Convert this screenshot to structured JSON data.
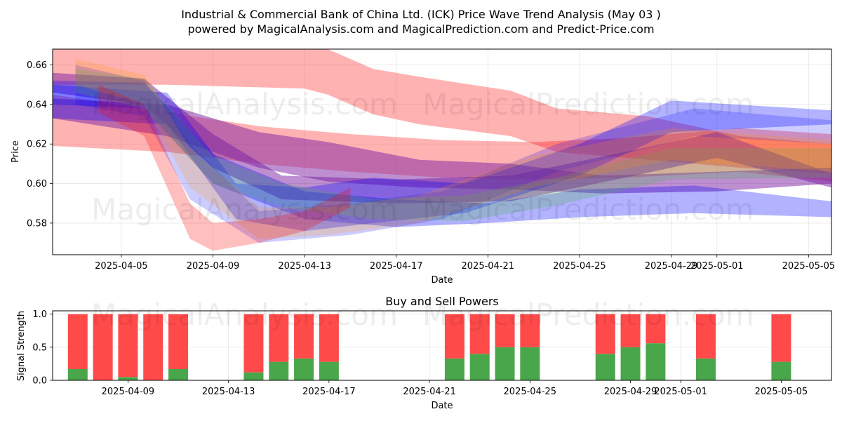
{
  "title_line1": "Industrial & Commercial Bank of China Ltd. (ICK) Price Wave Trend Analysis (May 03 )",
  "title_line2": "powered by MagicalAnalysis.com and MagicalPrediction.com and Predict-Price.com",
  "watermarks": {
    "a": "MagicalAnalysis.com",
    "b": "MagicalPrediction.com"
  },
  "colors": {
    "red": "#ff0000",
    "blue": "#0000ff",
    "purple": "#7b1fa2",
    "green": "#4caf50",
    "orange": "#ff9800",
    "buy": "#4aa64a",
    "sell": "#ff4a4a"
  },
  "chart_data": [
    {
      "type": "area",
      "title": "Industrial & Commercial Bank of China Ltd. (ICK) Price Wave Trend Analysis (May 03 )",
      "xlabel": "Date",
      "ylabel": "Price",
      "ylim": [
        0.564,
        0.668
      ],
      "xlim": [
        "2025-04-02",
        "2025-05-06"
      ],
      "x_ticks": [
        "2025-04-05",
        "2025-04-09",
        "2025-04-13",
        "2025-04-17",
        "2025-04-21",
        "2025-04-25",
        "2025-04-29",
        "2025-05-01",
        "2025-05-05"
      ],
      "y_ticks": [
        0.58,
        0.6,
        0.62,
        0.64,
        0.66
      ],
      "grid": true,
      "series": [
        {
          "name": "red-upper",
          "color": "#ff0000",
          "opacity": 0.3,
          "x": [
            "2025-04-02",
            "2025-04-07",
            "2025-04-10",
            "2025-04-13",
            "2025-04-14",
            "2025-04-16",
            "2025-04-18",
            "2025-04-22",
            "2025-04-24",
            "2025-04-28",
            "2025-05-02",
            "2025-05-06"
          ],
          "upper": [
            0.675,
            0.673,
            0.672,
            0.672,
            0.668,
            0.658,
            0.654,
            0.647,
            0.638,
            0.634,
            0.624,
            0.62
          ],
          "lower": [
            0.65,
            0.65,
            0.649,
            0.648,
            0.645,
            0.635,
            0.63,
            0.624,
            0.616,
            0.612,
            0.608,
            0.605
          ]
        },
        {
          "name": "red-lower",
          "color": "#ff0000",
          "opacity": 0.3,
          "x": [
            "2025-04-02",
            "2025-04-07",
            "2025-04-11",
            "2025-04-15",
            "2025-04-19",
            "2025-04-23",
            "2025-04-27",
            "2025-05-02",
            "2025-05-06"
          ],
          "upper": [
            0.645,
            0.636,
            0.629,
            0.625,
            0.622,
            0.621,
            0.623,
            0.628,
            0.625
          ],
          "lower": [
            0.619,
            0.616,
            0.61,
            0.606,
            0.603,
            0.602,
            0.603,
            0.606,
            0.601
          ]
        },
        {
          "name": "purple-1",
          "color": "#7b1fa2",
          "opacity": 0.5,
          "x": [
            "2025-04-02",
            "2025-04-07",
            "2025-04-11",
            "2025-04-14",
            "2025-04-18",
            "2025-04-22",
            "2025-04-26",
            "2025-05-01",
            "2025-05-06"
          ],
          "upper": [
            0.643,
            0.64,
            0.626,
            0.621,
            0.612,
            0.61,
            0.604,
            0.606,
            0.608
          ],
          "lower": [
            0.633,
            0.624,
            0.608,
            0.601,
            0.598,
            0.597,
            0.595,
            0.596,
            0.6
          ]
        },
        {
          "name": "purple-2",
          "color": "#7b1fa2",
          "opacity": 0.5,
          "x": [
            "2025-04-02",
            "2025-04-06",
            "2025-04-09",
            "2025-04-12",
            "2025-04-17",
            "2025-04-22",
            "2025-04-27",
            "2025-05-01",
            "2025-05-06"
          ],
          "upper": [
            0.656,
            0.653,
            0.625,
            0.604,
            0.602,
            0.604,
            0.616,
            0.626,
            0.605
          ],
          "lower": [
            0.646,
            0.64,
            0.608,
            0.592,
            0.59,
            0.591,
            0.603,
            0.613,
            0.598
          ]
        },
        {
          "name": "blue-1",
          "color": "#0000ff",
          "opacity": 0.3,
          "x": [
            "2025-04-02",
            "2025-04-06",
            "2025-04-09",
            "2025-04-13",
            "2025-04-17",
            "2025-04-21",
            "2025-04-25",
            "2025-04-30",
            "2025-05-06"
          ],
          "upper": [
            0.652,
            0.651,
            0.615,
            0.596,
            0.592,
            0.59,
            0.597,
            0.599,
            0.591
          ],
          "lower": [
            0.64,
            0.638,
            0.6,
            0.582,
            0.578,
            0.58,
            0.583,
            0.585,
            0.583
          ]
        },
        {
          "name": "blue-2",
          "color": "#0000ff",
          "opacity": 0.3,
          "x": [
            "2025-04-02",
            "2025-04-07",
            "2025-04-10",
            "2025-04-13",
            "2025-04-16",
            "2025-04-20",
            "2025-04-25",
            "2025-04-29",
            "2025-05-06"
          ],
          "upper": [
            0.65,
            0.646,
            0.6,
            0.598,
            0.603,
            0.6,
            0.62,
            0.642,
            0.637
          ],
          "lower": [
            0.633,
            0.63,
            0.582,
            0.576,
            0.58,
            0.585,
            0.604,
            0.626,
            0.63
          ]
        },
        {
          "name": "blue-3",
          "color": "#0000ff",
          "opacity": 0.2,
          "x": [
            "2025-04-03",
            "2025-04-06",
            "2025-04-08",
            "2025-04-11",
            "2025-04-15",
            "2025-04-19",
            "2025-04-24",
            "2025-04-30",
            "2025-05-06"
          ],
          "upper": [
            0.66,
            0.652,
            0.62,
            0.586,
            0.59,
            0.596,
            0.62,
            0.638,
            0.632
          ],
          "lower": [
            0.64,
            0.634,
            0.592,
            0.57,
            0.574,
            0.582,
            0.606,
            0.624,
            0.62
          ]
        },
        {
          "name": "green-1",
          "color": "#4caf50",
          "opacity": 0.25,
          "x": [
            "2025-04-03",
            "2025-04-06",
            "2025-04-09",
            "2025-04-12",
            "2025-04-16",
            "2025-04-20",
            "2025-04-24",
            "2025-04-29",
            "2025-05-06"
          ],
          "upper": [
            0.658,
            0.653,
            0.614,
            0.6,
            0.592,
            0.594,
            0.603,
            0.618,
            0.618
          ],
          "lower": [
            0.646,
            0.638,
            0.6,
            0.588,
            0.582,
            0.581,
            0.589,
            0.602,
            0.603
          ]
        },
        {
          "name": "orange-1",
          "color": "#ff9800",
          "opacity": 0.2,
          "x": [
            "2025-04-03",
            "2025-04-06",
            "2025-04-08",
            "2025-04-11",
            "2025-04-14",
            "2025-04-18",
            "2025-04-23",
            "2025-04-29",
            "2025-05-06"
          ],
          "upper": [
            0.663,
            0.655,
            0.618,
            0.588,
            0.588,
            0.594,
            0.614,
            0.628,
            0.622
          ],
          "lower": [
            0.65,
            0.64,
            0.598,
            0.572,
            0.574,
            0.58,
            0.598,
            0.612,
            0.606
          ]
        },
        {
          "name": "red-spike",
          "color": "#ff0000",
          "opacity": 0.25,
          "x": [
            "2025-04-04",
            "2025-04-06",
            "2025-04-08",
            "2025-04-09",
            "2025-04-11",
            "2025-04-13",
            "2025-04-15"
          ],
          "upper": [
            0.65,
            0.64,
            0.59,
            0.58,
            0.582,
            0.586,
            0.598
          ],
          "lower": [
            0.636,
            0.624,
            0.572,
            0.566,
            0.57,
            0.576,
            0.588
          ]
        }
      ]
    },
    {
      "type": "bar",
      "title": "Buy and Sell Powers",
      "xlabel": "Date",
      "ylabel": "Signal Strength",
      "ylim": [
        0,
        1.05
      ],
      "xlim": [
        "2025-04-06",
        "2025-05-07"
      ],
      "x_ticks": [
        "2025-04-09",
        "2025-04-13",
        "2025-04-17",
        "2025-04-21",
        "2025-04-25",
        "2025-04-29",
        "2025-05-01",
        "2025-05-05"
      ],
      "y_ticks": [
        0.0,
        0.5,
        1.0
      ],
      "grid": true,
      "categories": [
        "2025-04-07",
        "2025-04-08",
        "2025-04-09",
        "2025-04-10",
        "2025-04-11",
        "2025-04-14",
        "2025-04-15",
        "2025-04-16",
        "2025-04-17",
        "2025-04-22",
        "2025-04-23",
        "2025-04-24",
        "2025-04-25",
        "2025-04-28",
        "2025-04-29",
        "2025-04-30",
        "2025-05-02",
        "2025-05-05"
      ],
      "series": [
        {
          "name": "Buy",
          "color": "#4aa64a",
          "values": [
            0.17,
            0.0,
            0.05,
            0.0,
            0.17,
            0.12,
            0.28,
            0.33,
            0.28,
            0.33,
            0.4,
            0.5,
            0.5,
            0.4,
            0.5,
            0.56,
            0.33,
            0.28
          ]
        },
        {
          "name": "Sell",
          "color": "#ff4a4a",
          "values": [
            0.83,
            1.0,
            0.95,
            1.0,
            0.83,
            0.88,
            0.72,
            0.67,
            0.72,
            0.67,
            0.6,
            0.5,
            0.5,
            0.6,
            0.5,
            0.44,
            0.67,
            0.72
          ]
        }
      ]
    }
  ]
}
